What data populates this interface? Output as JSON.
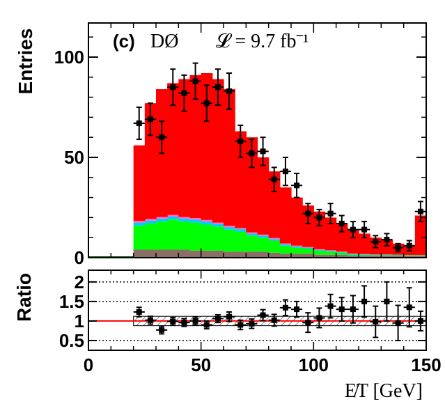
{
  "chart_data": [
    {
      "type": "bar",
      "panel": "main",
      "annotation": {
        "label": "(c)",
        "experiment": "DØ",
        "lumi": "𝓛 = 9.7 fb⁻¹"
      },
      "ylabel": "Entries",
      "xlim": [
        0,
        150
      ],
      "ylim": [
        0,
        117
      ],
      "yticks": [
        "0",
        "50",
        "100"
      ],
      "stack": {
        "x_edges": [
          20,
          25,
          30,
          35,
          40,
          45,
          50,
          55,
          60,
          65,
          70,
          75,
          80,
          85,
          90,
          95,
          100,
          105,
          110,
          115,
          120,
          125,
          130,
          135,
          140,
          145,
          150
        ],
        "series": [
          {
            "color": "#8b6f66",
            "values": [
              4,
              4,
              4,
              4,
              4,
              3.5,
              3.5,
              3.5,
              3,
              3,
              3,
              3,
              2.5,
              2,
              2,
              2,
              1.5,
              1.5,
              1.5,
              1,
              1,
              1,
              1,
              1,
              1,
              1
            ]
          },
          {
            "color": "#00ff00",
            "values": [
              12,
              13,
              14,
              15,
              14,
              14,
              13,
              12,
              11,
              10,
              8,
              7,
              6,
              4,
              3,
              2.5,
              2,
              1.5,
              1,
              0.5,
              0.4,
              0.3,
              0.3,
              0.2,
              0.2,
              0.2
            ]
          },
          {
            "color": "#00ccff",
            "values": [
              1.5,
              1.5,
              1.5,
              1.5,
              1.5,
              1.5,
              1.5,
              1.3,
              1.2,
              1.2,
              1,
              1,
              0.8,
              0.7,
              0.6,
              0.5,
              0.4,
              0.4,
              0.3,
              0.3,
              0.2,
              0.2,
              0.2,
              0.2,
              0.1,
              0.1
            ]
          },
          {
            "color": "#ff66cc",
            "values": [
              0.8,
              0.8,
              0.8,
              0.8,
              0.8,
              0.8,
              0.8,
              0.7,
              0.7,
              0.6,
              0.6,
              0.5,
              0.5,
              0.4,
              0.4,
              0.3,
              0.3,
              0.3,
              0.2,
              0.2,
              0.2,
              0.1,
              0.1,
              0.1,
              0.1,
              0.1
            ]
          },
          {
            "color": "#ff0000",
            "values": [
              37.7,
              57.7,
              63.7,
              65.7,
              68.7,
              71.2,
              73.2,
              71.5,
              68.1,
              48.2,
              47.4,
              38.5,
              33.2,
              27.9,
              24,
              20.7,
              18.8,
              16.3,
              14,
              12,
              10.2,
              8.4,
              7.4,
              5.5,
              4.6,
              19.6
            ]
          }
        ]
      },
      "data_points": {
        "x": [
          22.5,
          27.5,
          32.5,
          37.5,
          42.5,
          47.5,
          52.5,
          57.5,
          62.5,
          67.5,
          72.5,
          77.5,
          82.5,
          87.5,
          92.5,
          97.5,
          102.5,
          107.5,
          112.5,
          117.5,
          122.5,
          127.5,
          132.5,
          137.5,
          142.5,
          147.5
        ],
        "y": [
          67,
          69,
          60,
          85,
          82,
          88,
          77,
          85,
          83,
          58,
          52,
          53,
          39,
          43,
          36,
          22,
          20,
          22,
          17,
          14,
          14,
          8,
          9,
          5,
          6,
          23
        ],
        "yerr": [
          8,
          8,
          8,
          9,
          9,
          9,
          9,
          9,
          9,
          8,
          7,
          7,
          6,
          7,
          6,
          5,
          4,
          5,
          4,
          4,
          4,
          3,
          3,
          2,
          2.5,
          5
        ]
      }
    },
    {
      "type": "scatter",
      "panel": "ratio",
      "ylabel": "Ratio",
      "xlabel": "E̸T [GeV]",
      "xlim": [
        0,
        150
      ],
      "ylim": [
        0.25,
        2.3
      ],
      "xticks": [
        "0",
        "50",
        "100",
        "150"
      ],
      "yticks": [
        "0.5",
        "1",
        "1.5",
        "2"
      ],
      "reference_lines": [
        0.5,
        1.5,
        2
      ],
      "unity_line": 1,
      "uncertainty_band": {
        "x_range": [
          20,
          150
        ],
        "low": 0.88,
        "high": 1.12
      },
      "data_points": {
        "x": [
          22.5,
          27.5,
          32.5,
          37.5,
          42.5,
          47.5,
          52.5,
          57.5,
          62.5,
          67.5,
          72.5,
          77.5,
          82.5,
          87.5,
          92.5,
          97.5,
          102.5,
          107.5,
          112.5,
          117.5,
          122.5,
          127.5,
          132.5,
          137.5,
          142.5,
          147.5
        ],
        "y": [
          1.23,
          1.02,
          0.77,
          0.99,
          0.96,
          1.0,
          0.9,
          1.06,
          1.11,
          0.9,
          0.93,
          1.15,
          1.02,
          1.34,
          1.3,
          0.96,
          1.08,
          1.38,
          1.3,
          1.3,
          1.5,
          0.98,
          1.5,
          0.95,
          1.35,
          1.0
        ],
        "yerr": [
          0.12,
          0.1,
          0.1,
          0.1,
          0.1,
          0.1,
          0.1,
          0.1,
          0.12,
          0.12,
          0.12,
          0.14,
          0.15,
          0.2,
          0.2,
          0.25,
          0.25,
          0.3,
          0.3,
          0.35,
          0.4,
          0.4,
          0.5,
          0.45,
          0.5,
          0.25
        ]
      }
    }
  ]
}
